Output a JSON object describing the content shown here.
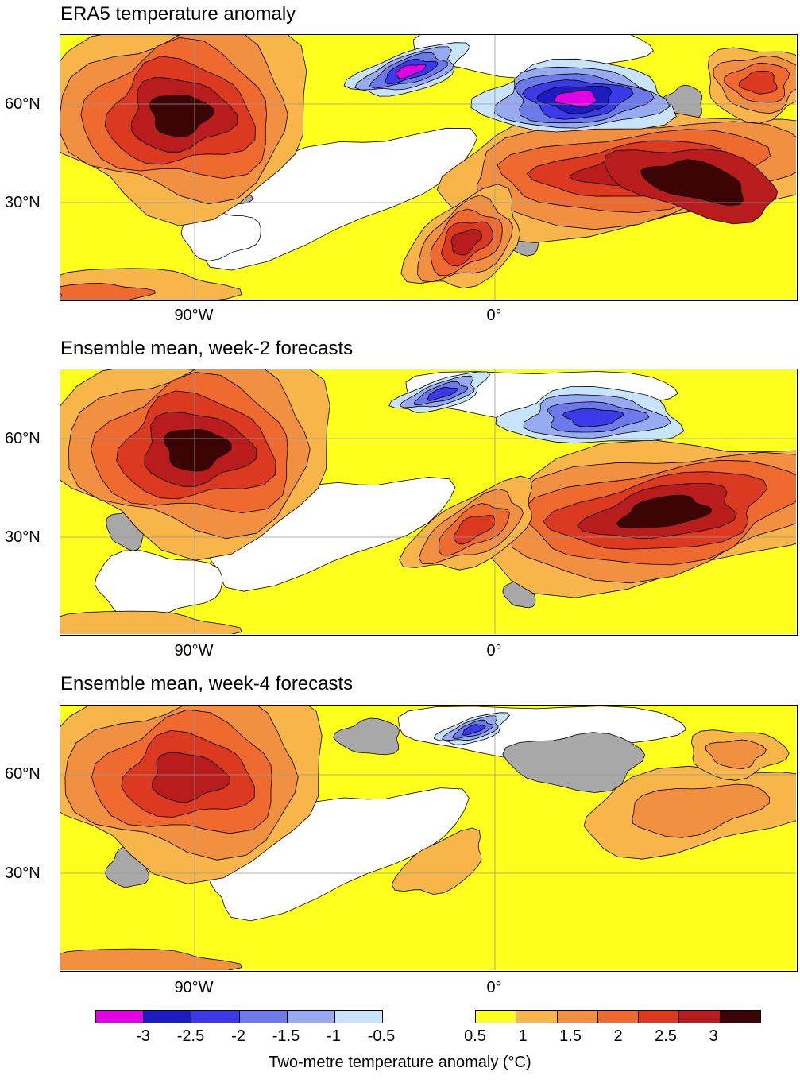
{
  "panels": [
    {
      "title": "ERA5 temperature anomaly"
    },
    {
      "title": "Ensemble mean, week-2 forecasts"
    },
    {
      "title": "Ensemble mean, week-4 forecasts"
    }
  ],
  "axes": {
    "lat_labels": [
      "60°N",
      "30°N"
    ],
    "lon_labels": [
      "90°W",
      "0°"
    ]
  },
  "colorbar": {
    "label": "Two-metre temperature anomaly (°C)",
    "negative_colors": [
      "#e400e4",
      "#1c1cc2",
      "#3a3ae8",
      "#6b7ae8",
      "#98aaf0",
      "#c8e4fa"
    ],
    "negative_ticks": [
      "-3",
      "-2.5",
      "-2",
      "-1.5",
      "-1",
      "-0.5"
    ],
    "positive_colors": [
      "#ffff1e",
      "#f7b54a",
      "#f29042",
      "#ee6a2e",
      "#dc3a20",
      "#b81c1c",
      "#3c0404"
    ],
    "positive_ticks": [
      "0.5",
      "1",
      "1.5",
      "2",
      "2.5",
      "3"
    ],
    "neutral_colors": {
      "white": "#ffffff",
      "grey": "#a8a8a8"
    }
  }
}
